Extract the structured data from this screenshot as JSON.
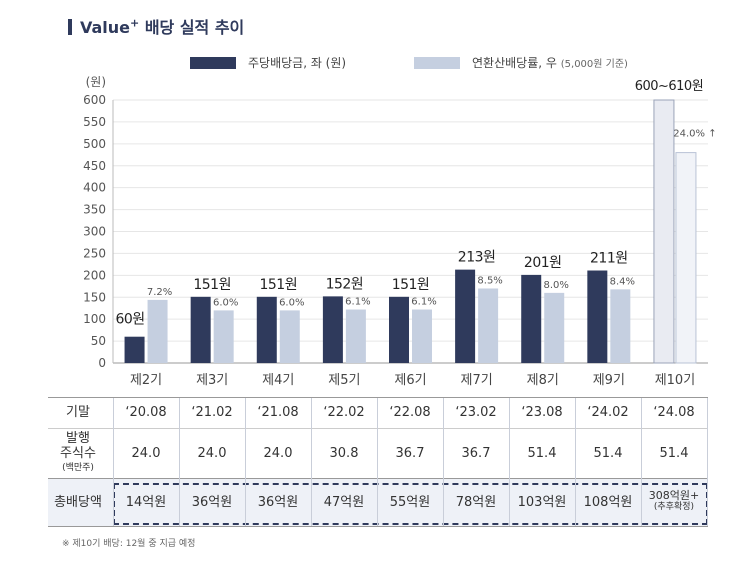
{
  "title": {
    "main": "Value",
    "sup": "+",
    "rest": " 배당 실적 추이"
  },
  "legend": {
    "series1": "주당배당금, 좌 (원)",
    "series2": "연환산배당률, 우",
    "series2_note": "(5,000원 기준)"
  },
  "colors": {
    "dps": "#2f3a5c",
    "yield": "#c5cfe0",
    "forecast_dps": "#e9ebf2",
    "forecast_yield": "#f1f3f8",
    "accent": "#2f3a5c"
  },
  "chart_data": {
    "type": "bar",
    "ylabel": "(원)",
    "ylim": [
      0,
      600
    ],
    "yticks": [
      "0",
      "50",
      "100",
      "150",
      "200",
      "250",
      "300",
      "350",
      "400",
      "450",
      "500",
      "550",
      "600"
    ],
    "categories": [
      "제2기",
      "제3기",
      "제4기",
      "제5기",
      "제6기",
      "제7기",
      "제8기",
      "제9기",
      "제10기"
    ],
    "series": [
      {
        "name": "주당배당금, 좌 (원)",
        "values": [
          60,
          151,
          151,
          152,
          151,
          213,
          201,
          211,
          600
        ],
        "labels": [
          "60원",
          "151원",
          "151원",
          "152원",
          "151원",
          "213원",
          "201원",
          "211원",
          "600~610원"
        ]
      },
      {
        "name": "연환산배당률, 우",
        "values": [
          7.2,
          6.0,
          6.0,
          6.1,
          6.1,
          8.5,
          8.0,
          8.4,
          24.0
        ],
        "labels": [
          "7.2%",
          "6.0%",
          "6.0%",
          "6.1%",
          "6.1%",
          "8.5%",
          "8.0%",
          "8.4%",
          "24.0% ↑"
        ]
      }
    ]
  },
  "table": {
    "period_label": "기말",
    "periods": [
      "‘20.08",
      "‘21.02",
      "‘21.08",
      "‘22.02",
      "‘22.08",
      "‘23.02",
      "‘23.08",
      "‘24.02",
      "‘24.08"
    ],
    "shares_label_1": "발행",
    "shares_label_2": "주식수",
    "shares_label_3": "(백만주)",
    "shares": [
      "24.0",
      "24.0",
      "24.0",
      "30.8",
      "36.7",
      "36.7",
      "51.4",
      "51.4",
      "51.4"
    ],
    "total_label": "총배당액",
    "totals": [
      "14억원",
      "36억원",
      "36억원",
      "47억원",
      "55억원",
      "78억원",
      "103억원",
      "108억원",
      "308억원+"
    ],
    "last_total_note": "(추후확정)"
  },
  "footnote": "※ 제10기 배당: 12월 중 지급 예정"
}
